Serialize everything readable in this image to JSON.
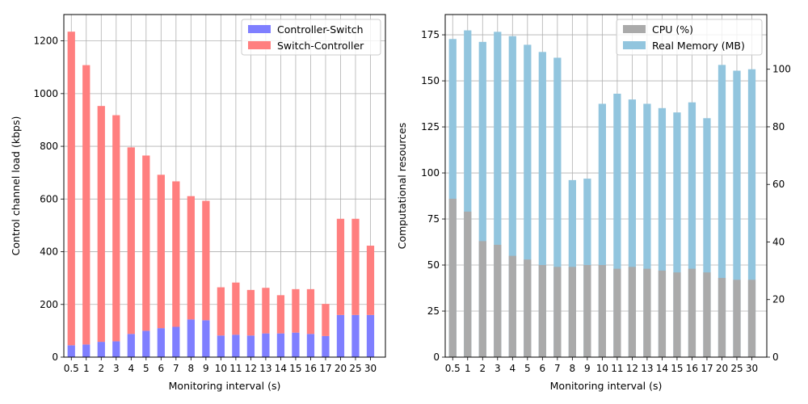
{
  "chart_data": [
    {
      "type": "bar",
      "stacked": true,
      "categories": [
        "0.5",
        "1",
        "2",
        "3",
        "4",
        "5",
        "6",
        "7",
        "8",
        "9",
        "10",
        "11",
        "12",
        "13",
        "14",
        "15",
        "16",
        "17",
        "20",
        "25",
        "30"
      ],
      "series": [
        {
          "name": "Controller-Switch",
          "color": "#7f7fff",
          "values": [
            45,
            48,
            58,
            60,
            88,
            100,
            110,
            115,
            143,
            140,
            82,
            85,
            82,
            90,
            90,
            93,
            88,
            80,
            160,
            160,
            160
          ]
        },
        {
          "name": "Switch-Controller",
          "color": "#ff7f7f",
          "values": [
            1190,
            1060,
            895,
            858,
            708,
            665,
            582,
            552,
            468,
            453,
            183,
            198,
            173,
            173,
            145,
            165,
            170,
            122,
            365,
            365,
            263
          ]
        }
      ],
      "xlabel": "Monitoring interval (s)",
      "ylabel": "Control channel load (kbps)",
      "ylim": [
        0,
        1300
      ],
      "yticks": [
        "0",
        "200",
        "400",
        "600",
        "800",
        "1000",
        "1200"
      ],
      "legend": "top-right",
      "grid": true
    },
    {
      "type": "bar",
      "overlay": true,
      "categories": [
        "0.5",
        "1",
        "2",
        "3",
        "4",
        "5",
        "6",
        "7",
        "8",
        "9",
        "10",
        "11",
        "12",
        "13",
        "14",
        "15",
        "16",
        "17",
        "20",
        "25",
        "30"
      ],
      "series": [
        {
          "name": "CPU (%)",
          "color": "#aaaaaa",
          "axis": "left",
          "values": [
            86,
            79,
            63,
            61,
            55,
            53,
            50,
            49,
            49,
            50,
            50,
            48,
            49,
            48,
            47,
            46,
            48,
            46,
            43,
            42,
            42
          ]
        },
        {
          "name": "Real Memory (MB)",
          "color": "#92c5de",
          "axis": "right",
          "values": [
            110.5,
            113.5,
            109.5,
            113,
            111.5,
            108.5,
            106,
            104,
            61.5,
            62,
            88,
            91.5,
            89.5,
            88,
            86.5,
            85,
            88.5,
            83,
            101.5,
            99.5,
            100
          ]
        }
      ],
      "xlabel": "Monitoring interval (s)",
      "ylabel": "Computational resources",
      "ylim": [
        0,
        186
      ],
      "yticks": [
        "0",
        "25",
        "50",
        "75",
        "100",
        "125",
        "150",
        "175"
      ],
      "ylim_right": [
        0,
        119
      ],
      "yticks_right": [
        "0",
        "20",
        "40",
        "60",
        "80",
        "100"
      ],
      "legend": "top-right",
      "grid": true
    }
  ]
}
